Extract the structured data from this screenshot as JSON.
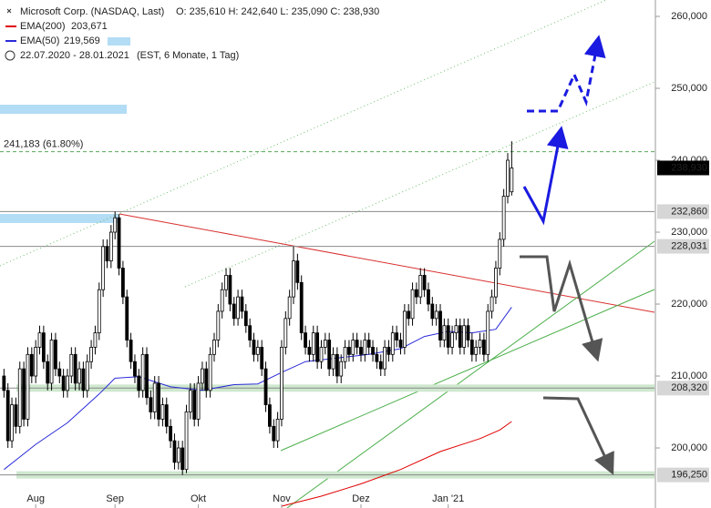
{
  "chart_data": {
    "type": "candlestick",
    "title": "Microsoft Corp. (NASDAQ, Last)",
    "ohlc_summary": "O: 235,610   H: 242,640   L: 235,090   C: 238,930",
    "period": "22.07.2020 - 28.01.2021",
    "period_note": "(EST, 6 Monate, 1 Tag)",
    "ohlc": [
      [
        210,
        211,
        207,
        208
      ],
      [
        208,
        209,
        200,
        201
      ],
      [
        201,
        207,
        200,
        206
      ],
      [
        206,
        207,
        202,
        203
      ],
      [
        203,
        212,
        202,
        211
      ],
      [
        211,
        212,
        203,
        204
      ],
      [
        204,
        214,
        203,
        213
      ],
      [
        213,
        214,
        209,
        210
      ],
      [
        210,
        215,
        209,
        214
      ],
      [
        214,
        217,
        213,
        216
      ],
      [
        216,
        217,
        211,
        212
      ],
      [
        212,
        213,
        208,
        209
      ],
      [
        209,
        216,
        208,
        215
      ],
      [
        215,
        216,
        210,
        211
      ],
      [
        211,
        212,
        209,
        210
      ],
      [
        210,
        211,
        207,
        208
      ],
      [
        208,
        211,
        207,
        210
      ],
      [
        210,
        214,
        209,
        213
      ],
      [
        213,
        214,
        208,
        209
      ],
      [
        209,
        212,
        208,
        211
      ],
      [
        211,
        212,
        207,
        208
      ],
      [
        208,
        213,
        207,
        212
      ],
      [
        212,
        215,
        211,
        214
      ],
      [
        214,
        217,
        213,
        216
      ],
      [
        216,
        223,
        215,
        222
      ],
      [
        222,
        229,
        221,
        228
      ],
      [
        228,
        229,
        225,
        226
      ],
      [
        226,
        231,
        225,
        230
      ],
      [
        230,
        232.86,
        229,
        232
      ],
      [
        232,
        232.5,
        224,
        225
      ],
      [
        225,
        226,
        220,
        221
      ],
      [
        221,
        222,
        214,
        215
      ],
      [
        215,
        216,
        211,
        212
      ],
      [
        212,
        213,
        209,
        210
      ],
      [
        210,
        211,
        207,
        208
      ],
      [
        208,
        214,
        207,
        213
      ],
      [
        213,
        214,
        206,
        207
      ],
      [
        207,
        208,
        204,
        205
      ],
      [
        205,
        210,
        204,
        209
      ],
      [
        209,
        210,
        203,
        204
      ],
      [
        204,
        207,
        203,
        206
      ],
      [
        206,
        207,
        202,
        203
      ],
      [
        203,
        204,
        200,
        201
      ],
      [
        201,
        202,
        197,
        198
      ],
      [
        198,
        201,
        197,
        200
      ],
      [
        200,
        201,
        196.25,
        197
      ],
      [
        197,
        206,
        196.5,
        205
      ],
      [
        205,
        209,
        204,
        208
      ],
      [
        208,
        209,
        203,
        204
      ],
      [
        204,
        210,
        203,
        209
      ],
      [
        209,
        212,
        208,
        211
      ],
      [
        211,
        212,
        207,
        208
      ],
      [
        208,
        214,
        207,
        213
      ],
      [
        213,
        216,
        212,
        215
      ],
      [
        215,
        220,
        214,
        219
      ],
      [
        219,
        223,
        218,
        222
      ],
      [
        222,
        225,
        221,
        224
      ],
      [
        224,
        225,
        219,
        220
      ],
      [
        220,
        221,
        217,
        218
      ],
      [
        218,
        222,
        217,
        221
      ],
      [
        221,
        222,
        218,
        219
      ],
      [
        219,
        220,
        216,
        217
      ],
      [
        217,
        218,
        214,
        215
      ],
      [
        215,
        216,
        212,
        213
      ],
      [
        213,
        215,
        212,
        214
      ],
      [
        214,
        215,
        210,
        211
      ],
      [
        211,
        212,
        205,
        206
      ],
      [
        206,
        207,
        202,
        203
      ],
      [
        203,
        204,
        200,
        201
      ],
      [
        201,
        205,
        200,
        204
      ],
      [
        204,
        215,
        203,
        214
      ],
      [
        214,
        219,
        213,
        218
      ],
      [
        218,
        222,
        217,
        221
      ],
      [
        221,
        228,
        220,
        226
      ],
      [
        226,
        227,
        222,
        223
      ],
      [
        223,
        224,
        215,
        216
      ],
      [
        216,
        217,
        213,
        214
      ],
      [
        214,
        215,
        212,
        213
      ],
      [
        213,
        217,
        212,
        216
      ],
      [
        216,
        217,
        211,
        212
      ],
      [
        212,
        215,
        211,
        214
      ],
      [
        214,
        216,
        213,
        215
      ],
      [
        215,
        216,
        210,
        211
      ],
      [
        211,
        214,
        210,
        213
      ],
      [
        213,
        214,
        209,
        210
      ],
      [
        210,
        213,
        209,
        212
      ],
      [
        212,
        215,
        211,
        214
      ],
      [
        214,
        215,
        212,
        213
      ],
      [
        213,
        216,
        212,
        215
      ],
      [
        215,
        216,
        213,
        214
      ],
      [
        214,
        215,
        212,
        213
      ],
      [
        213,
        216,
        212,
        215
      ],
      [
        215,
        216,
        213,
        214
      ],
      [
        214,
        215,
        212,
        213
      ],
      [
        213,
        214,
        211,
        212
      ],
      [
        212,
        213,
        210,
        211
      ],
      [
        211,
        215,
        210,
        214
      ],
      [
        214,
        215,
        212,
        213
      ],
      [
        213,
        217,
        212,
        216
      ],
      [
        216,
        217,
        214,
        215
      ],
      [
        215,
        216,
        213,
        214
      ],
      [
        214,
        220,
        213,
        219
      ],
      [
        219,
        220,
        217,
        218
      ],
      [
        218,
        223,
        217,
        222
      ],
      [
        222,
        223,
        220,
        221
      ],
      [
        221,
        225,
        220,
        224
      ],
      [
        224,
        225,
        221,
        222
      ],
      [
        222,
        223,
        219,
        220
      ],
      [
        220,
        221,
        217,
        218
      ],
      [
        218,
        220,
        217,
        219
      ],
      [
        219,
        220,
        214,
        215
      ],
      [
        215,
        218,
        214,
        217
      ],
      [
        217,
        218,
        213,
        214
      ],
      [
        214,
        217,
        213,
        216
      ],
      [
        216,
        218,
        215,
        217
      ],
      [
        217,
        218,
        213,
        214
      ],
      [
        214,
        218,
        213,
        217
      ],
      [
        217,
        218,
        214,
        215
      ],
      [
        215,
        216,
        212,
        213
      ],
      [
        213,
        215,
        212,
        214
      ],
      [
        214,
        216,
        213,
        215
      ],
      [
        215,
        216,
        212,
        213
      ],
      [
        213,
        220,
        212,
        219
      ],
      [
        219,
        222,
        218,
        221
      ],
      [
        221,
        226,
        220,
        225
      ],
      [
        225,
        230,
        224,
        229
      ],
      [
        229,
        236,
        228,
        235
      ],
      [
        235,
        241,
        234,
        240
      ],
      [
        235.61,
        242.64,
        235.09,
        238.93
      ]
    ],
    "series": [
      {
        "name": "EMA(200)",
        "value_label": "203,671",
        "color": "#e00000",
        "x": [
          70,
          80,
          90,
          100,
          110,
          120,
          125,
          128
        ],
        "values": [
          191.9,
          193.3,
          195,
          197,
          199.5,
          201.3,
          202.5,
          203.671
        ]
      },
      {
        "name": "EMA(50)",
        "value_label": "219,569",
        "color": "#2a2ad8",
        "x": [
          0,
          8,
          16,
          24,
          28,
          34,
          42,
          50,
          58,
          64,
          70,
          76,
          84,
          92,
          100,
          106,
          112,
          118,
          124,
          128
        ],
        "values": [
          197,
          200.5,
          203.5,
          207.5,
          209.7,
          209.9,
          208.5,
          208,
          208.8,
          208.9,
          210.5,
          212,
          212.5,
          213,
          213.8,
          215.5,
          216.2,
          216,
          216.5,
          219.569
        ]
      }
    ],
    "xlim": [
      -1,
      164
    ],
    "xticks": [
      {
        "value": 8,
        "label": "Aug"
      },
      {
        "value": 28,
        "label": "Sep"
      },
      {
        "value": 49,
        "label": "Okt"
      },
      {
        "value": 70,
        "label": "Nov"
      },
      {
        "value": 90,
        "label": "Dez"
      },
      {
        "value": 112,
        "label": "Jan '21"
      }
    ],
    "ylim": [
      191.65,
      262.28
    ],
    "yticks": [
      {
        "value": 200,
        "label": "200,000"
      },
      {
        "value": 210,
        "label": "210,000"
      },
      {
        "value": 220,
        "label": "220,000"
      },
      {
        "value": 230,
        "label": "230,000"
      },
      {
        "value": 240,
        "label": "240,000"
      },
      {
        "value": 250,
        "label": "250,000"
      },
      {
        "value": 260,
        "label": "260,000"
      }
    ],
    "fib_level": {
      "value": 241.183,
      "label": "241,183 (61.80%)",
      "color": "#5aa85a"
    },
    "levels": [
      {
        "value": 232.86,
        "label": "232,860",
        "band": false
      },
      {
        "value": 228.031,
        "label": "228,031",
        "band": false
      },
      {
        "value": 208.32,
        "label": "208,320",
        "band": true
      },
      {
        "value": 196.25,
        "label": "196,250",
        "band": true
      }
    ],
    "last_price": {
      "value": 238.93,
      "label": "238,930"
    }
  }
}
